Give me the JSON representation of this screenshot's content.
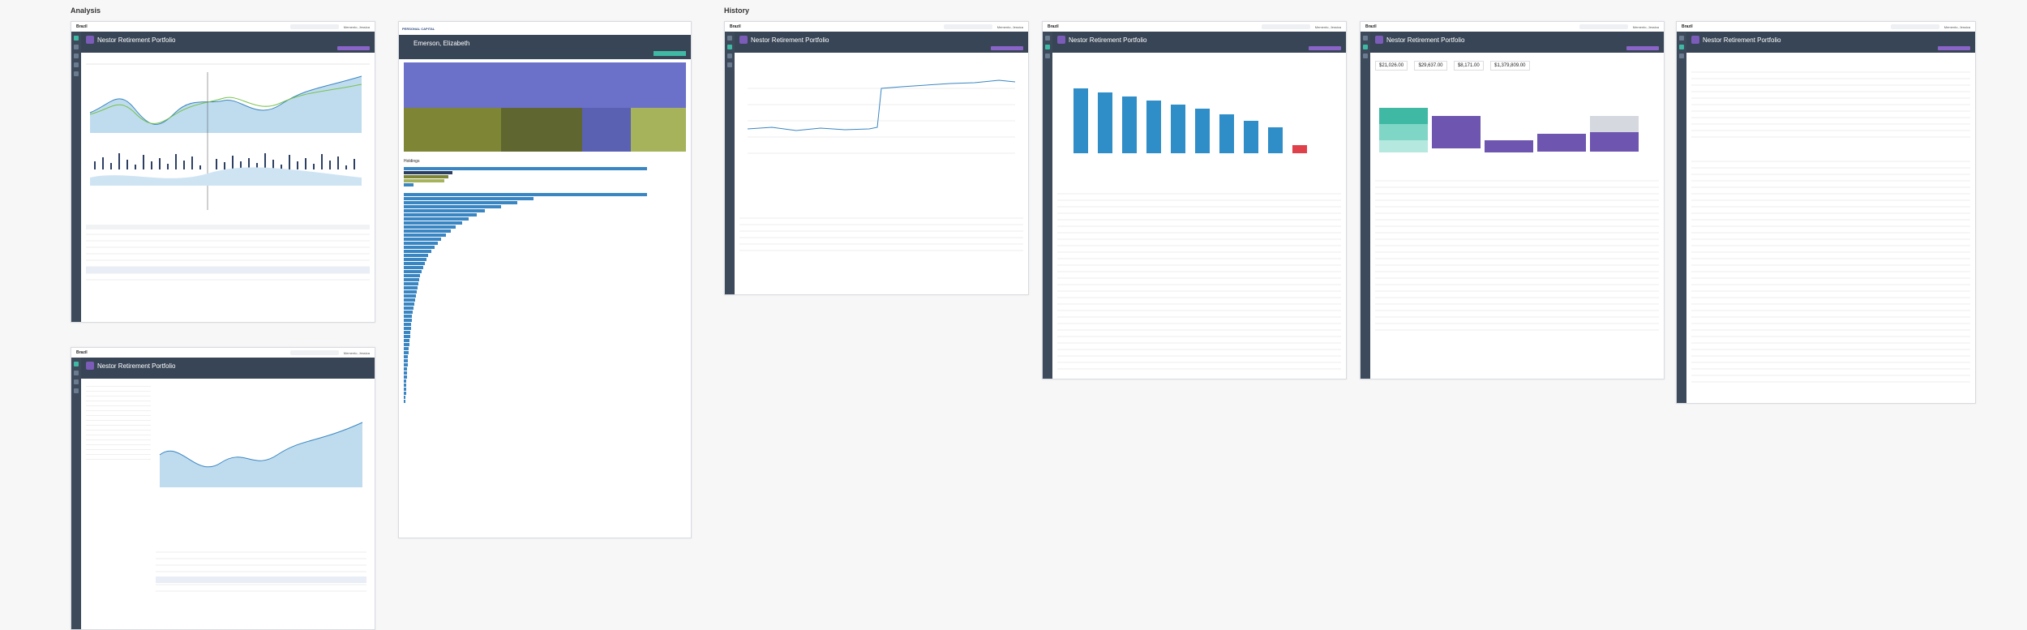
{
  "sections": {
    "analysis": "Analysis",
    "history": "History"
  },
  "common": {
    "brand": "Brazil",
    "user": "Memento, Jessica",
    "portfolio_title": "Nestor Retirement Portfolio"
  },
  "emerson": {
    "brand": "PERSONAL CAPITAL",
    "title": "Emerson, Elizabeth",
    "holdings": "Holdings"
  },
  "cards": [
    "$21,026.00",
    "$29,637.00",
    "$8,171.00",
    "$1,379,809.00"
  ],
  "colors": {
    "nav": "#3c4a5c",
    "header": "#384556",
    "accent": "#3fb9a4",
    "purple": "#8a64c8",
    "blue": "#3a86c2",
    "treemap_main": "#6b71c8"
  }
}
